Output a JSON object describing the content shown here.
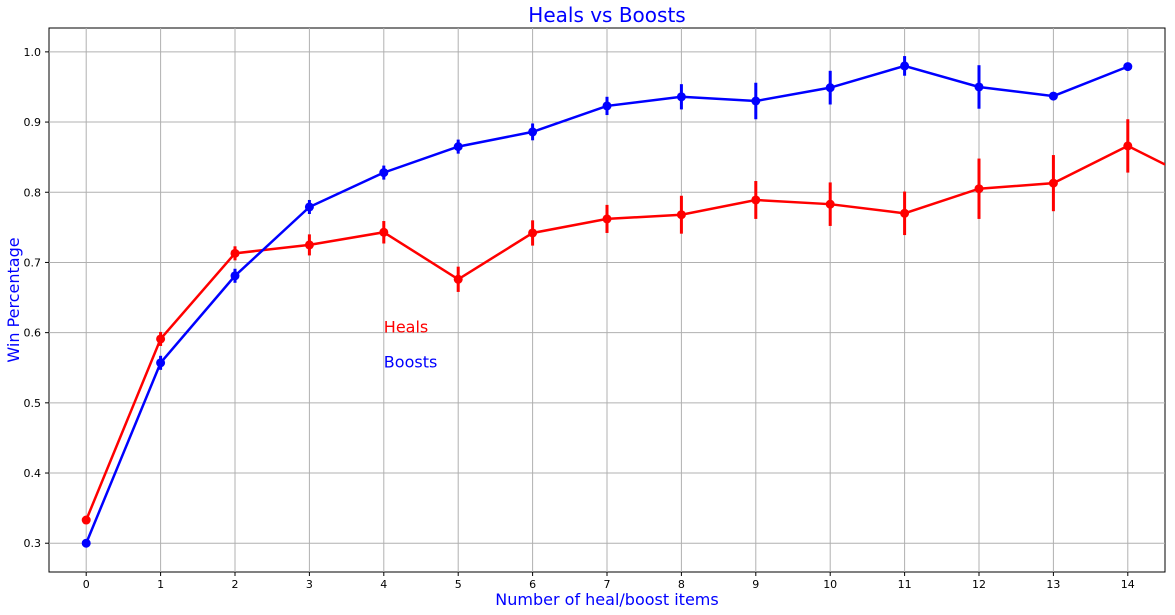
{
  "chart_data": {
    "type": "pointplot",
    "title": "Heals vs Boosts",
    "xlabel": "Number of heal/boost items",
    "ylabel": "Win Percentage",
    "categories": [
      "0",
      "1",
      "2",
      "3",
      "4",
      "5",
      "6",
      "7",
      "8",
      "9",
      "10",
      "11",
      "12",
      "13",
      "14",
      null
    ],
    "series": [
      {
        "name": "Heals",
        "color": "#ff0000",
        "values": [
          0.333,
          0.591,
          0.713,
          0.725,
          0.743,
          0.676,
          0.742,
          0.762,
          0.768,
          0.789,
          0.783,
          0.77,
          0.805,
          0.813,
          0.866,
          0.813
        ],
        "errors": [
          0.003,
          0.01,
          0.01,
          0.015,
          0.016,
          0.018,
          0.018,
          0.02,
          0.027,
          0.027,
          0.031,
          0.031,
          0.043,
          0.04,
          0.038,
          0.04
        ]
      },
      {
        "name": "Boosts",
        "color": "#0000ff",
        "values": [
          0.3,
          0.557,
          0.681,
          0.779,
          0.828,
          0.865,
          0.886,
          0.923,
          0.936,
          0.93,
          0.949,
          0.98,
          0.95,
          0.937,
          0.979,
          null
        ],
        "errors": [
          0.002,
          0.01,
          0.01,
          0.01,
          0.01,
          0.01,
          0.012,
          0.013,
          0.018,
          0.026,
          0.024,
          0.014,
          0.031,
          0.005,
          0.005,
          null
        ]
      }
    ],
    "annotations": [
      {
        "text": "Heals",
        "x": 4,
        "y": 0.6,
        "color": "#ff0000"
      },
      {
        "text": "Boosts",
        "x": 4,
        "y": 0.55,
        "color": "#0000ff"
      }
    ],
    "xlim": [
      -0.5,
      14.5
    ],
    "ylim": [
      0.259,
      1.034
    ],
    "yticks": [
      0.3,
      0.4,
      0.5,
      0.6,
      0.7,
      0.8,
      0.9,
      {
        "value": 1,
        "label": "1.0"
      }
    ],
    "grid": true,
    "label_color": "#0000ff"
  }
}
